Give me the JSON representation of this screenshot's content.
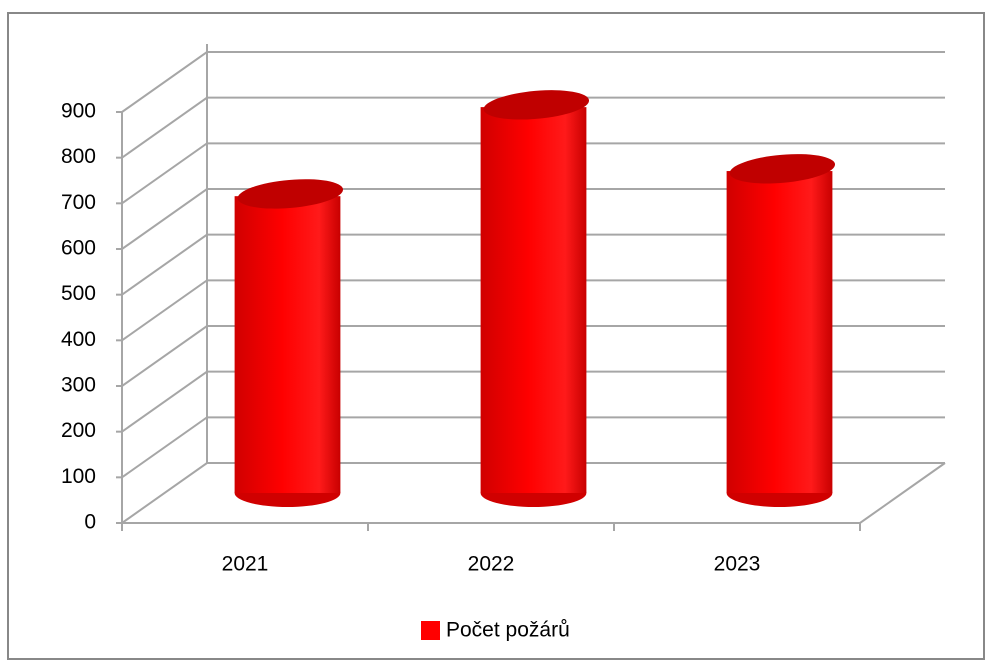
{
  "chart_data": {
    "type": "bar3d",
    "categories": [
      "2021",
      "2022",
      "2023"
    ],
    "series": [
      {
        "name": "Počet požárů",
        "color": "#ff0000",
        "values": [
          650,
          845,
          705
        ]
      }
    ],
    "ylim": [
      0,
      900
    ],
    "yticks": [
      0,
      100,
      200,
      300,
      400,
      500,
      600,
      700,
      800,
      900
    ],
    "grid": true,
    "legend": "bottom"
  }
}
